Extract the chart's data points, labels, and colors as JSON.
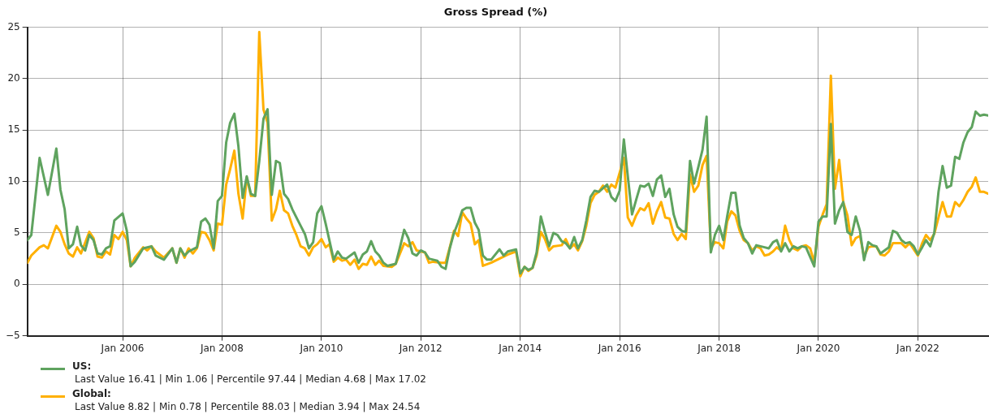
{
  "chart_data": {
    "type": "line",
    "title": "Gross Spread (%)",
    "xlim": [
      "2004-02",
      "2023-06"
    ],
    "xticks": [
      {
        "value": "2006-01",
        "label": "Jan 2006"
      },
      {
        "value": "2008-01",
        "label": "Jan 2008"
      },
      {
        "value": "2010-01",
        "label": "Jan 2010"
      },
      {
        "value": "2012-01",
        "label": "Jan 2012"
      },
      {
        "value": "2014-01",
        "label": "Jan 2014"
      },
      {
        "value": "2016-01",
        "label": "Jan 2016"
      },
      {
        "value": "2018-01",
        "label": "Jan 2018"
      },
      {
        "value": "2020-01",
        "label": "Jan 2020"
      },
      {
        "value": "2022-01",
        "label": "Jan 2022"
      }
    ],
    "ylim": [
      -5,
      25
    ],
    "yticks": [
      -5,
      0,
      5,
      10,
      15,
      20,
      25
    ],
    "grid": true,
    "legend": "bottom left",
    "marker": "none",
    "line_style": "solid",
    "annotations": [
      "Last Value 16.41  |  Min 1.06  |  Percentile 97.44  |  Median 4.68  |  Max 17.02",
      "Last Value 8.82  |  Min 0.78  |  Percentile 88.03  |  Median 3.94  |  Max 24.54"
    ],
    "series": [
      {
        "name": "US:",
        "color": "#5fa35f",
        "x": [
          "2004-02",
          "2004-03",
          "2004-05",
          "2004-07",
          "2004-09",
          "2004-10",
          "2004-11",
          "2004-12",
          "2005-01",
          "2005-02",
          "2005-03",
          "2005-04",
          "2005-05",
          "2005-06",
          "2005-07",
          "2005-08",
          "2005-09",
          "2005-10",
          "2005-11",
          "2006-01",
          "2006-02",
          "2006-03",
          "2006-04",
          "2006-06",
          "2006-08",
          "2006-09",
          "2006-11",
          "2007-01",
          "2007-02",
          "2007-03",
          "2007-04",
          "2007-05",
          "2007-07",
          "2007-08",
          "2007-09",
          "2007-10",
          "2007-11",
          "2007-12",
          "2008-01",
          "2008-02",
          "2008-03",
          "2008-04",
          "2008-05",
          "2008-06",
          "2008-07",
          "2008-08",
          "2008-09",
          "2008-10",
          "2008-11",
          "2008-12",
          "2009-01",
          "2009-02",
          "2009-03",
          "2009-04",
          "2009-05",
          "2009-06",
          "2009-07",
          "2009-08",
          "2009-09",
          "2009-10",
          "2009-11",
          "2009-12",
          "2010-01",
          "2010-02",
          "2010-04",
          "2010-05",
          "2010-06",
          "2010-07",
          "2010-09",
          "2010-10",
          "2010-11",
          "2010-12",
          "2011-01",
          "2011-02",
          "2011-03",
          "2011-04",
          "2011-05",
          "2011-07",
          "2011-08",
          "2011-09",
          "2011-10",
          "2011-11",
          "2011-12",
          "2012-01",
          "2012-02",
          "2012-03",
          "2012-05",
          "2012-06",
          "2012-07",
          "2012-08",
          "2012-09",
          "2012-10",
          "2012-11",
          "2012-12",
          "2013-01",
          "2013-02",
          "2013-03",
          "2013-04",
          "2013-05",
          "2013-06",
          "2013-08",
          "2013-09",
          "2013-10",
          "2013-12",
          "2014-01",
          "2014-02",
          "2014-03",
          "2014-04",
          "2014-05",
          "2014-06",
          "2014-07",
          "2014-08",
          "2014-09",
          "2014-10",
          "2014-11",
          "2014-12",
          "2015-01",
          "2015-02",
          "2015-03",
          "2015-04",
          "2015-05",
          "2015-06",
          "2015-07",
          "2015-08",
          "2015-10",
          "2015-11",
          "2015-12",
          "2016-01",
          "2016-02",
          "2016-03",
          "2016-04",
          "2016-05",
          "2016-06",
          "2016-07",
          "2016-08",
          "2016-09",
          "2016-10",
          "2016-11",
          "2016-12",
          "2017-01",
          "2017-02",
          "2017-03",
          "2017-04",
          "2017-05",
          "2017-06",
          "2017-07",
          "2017-08",
          "2017-09",
          "2017-10",
          "2017-11",
          "2017-12",
          "2018-01",
          "2018-02",
          "2018-03",
          "2018-04",
          "2018-05",
          "2018-06",
          "2018-07",
          "2018-08",
          "2018-09",
          "2018-10",
          "2018-11",
          "2018-12",
          "2019-01",
          "2019-02",
          "2019-03",
          "2019-04",
          "2019-05",
          "2019-06",
          "2019-07",
          "2019-08",
          "2019-09",
          "2019-10",
          "2019-12",
          "2020-01",
          "2020-02",
          "2020-03",
          "2020-04",
          "2020-05",
          "2020-06",
          "2020-07",
          "2020-08",
          "2020-09",
          "2020-10",
          "2020-11",
          "2020-12",
          "2021-01",
          "2021-02",
          "2021-03",
          "2021-04",
          "2021-05",
          "2021-06",
          "2021-07",
          "2021-08",
          "2021-09",
          "2021-10",
          "2021-11",
          "2021-12",
          "2022-01",
          "2022-02",
          "2022-03",
          "2022-04",
          "2022-05",
          "2022-06",
          "2022-07",
          "2022-08",
          "2022-09",
          "2022-10",
          "2022-11",
          "2022-12",
          "2023-01",
          "2023-02",
          "2023-03",
          "2023-04",
          "2023-05",
          "2023-06"
        ],
        "values": [
          4.3,
          4.8,
          12.3,
          8.7,
          13.2,
          9.2,
          7.3,
          3.5,
          3.9,
          5.6,
          3.8,
          3.3,
          4.8,
          4.3,
          3.0,
          2.9,
          3.5,
          3.7,
          6.2,
          6.9,
          5.2,
          1.75,
          2.2,
          3.5,
          3.7,
          2.8,
          2.4,
          3.5,
          2.1,
          3.5,
          2.8,
          3.2,
          3.6,
          6.1,
          6.4,
          5.8,
          3.5,
          8.1,
          8.6,
          13.8,
          15.7,
          16.6,
          13.4,
          8.4,
          10.5,
          8.8,
          8.6,
          12.0,
          16.1,
          17.02,
          8.7,
          12.0,
          11.8,
          8.8,
          8.3,
          7.3,
          6.5,
          5.7,
          4.9,
          3.5,
          4.1,
          6.9,
          7.6,
          5.9,
          2.4,
          3.2,
          2.6,
          2.5,
          3.1,
          2.1,
          2.9,
          3.2,
          4.2,
          3.2,
          2.8,
          2.1,
          1.8,
          2.0,
          3.6,
          5.3,
          4.5,
          3.0,
          2.8,
          3.3,
          3.1,
          2.5,
          2.3,
          1.7,
          1.5,
          3.5,
          5.0,
          6.0,
          7.2,
          7.45,
          7.45,
          6.0,
          5.3,
          2.8,
          2.4,
          2.4,
          3.4,
          2.8,
          3.2,
          3.4,
          1.06,
          1.7,
          1.4,
          1.6,
          3.1,
          6.6,
          5.1,
          3.7,
          5.0,
          4.8,
          4.2,
          4.0,
          3.5,
          4.6,
          3.5,
          4.3,
          6.2,
          8.5,
          9.1,
          9.0,
          9.7,
          8.5,
          8.1,
          9.1,
          14.1,
          10.5,
          6.8,
          8.2,
          9.6,
          9.5,
          9.8,
          8.6,
          10.2,
          10.6,
          8.5,
          9.3,
          6.8,
          5.6,
          5.2,
          5.1,
          12.0,
          9.8,
          11.4,
          13.1,
          16.3,
          3.1,
          4.8,
          5.7,
          4.3,
          6.6,
          8.9,
          8.9,
          5.7,
          4.5,
          4.0,
          3.0,
          3.8,
          3.7,
          3.6,
          3.5,
          4.1,
          4.3,
          3.2,
          4.0,
          3.2,
          3.7,
          3.5,
          3.7,
          3.6,
          1.75,
          6.1,
          6.6,
          6.6,
          15.6,
          5.9,
          7.2,
          8.0,
          5.1,
          4.8,
          6.6,
          5.2,
          2.35,
          4.1,
          3.8,
          3.7,
          3.0,
          3.3,
          3.6,
          5.2,
          5.0,
          4.3,
          4.0,
          4.1,
          3.7,
          2.9,
          3.6,
          4.3,
          3.7,
          5.0,
          9.0,
          11.5,
          9.4,
          9.6,
          12.4,
          12.2,
          13.8,
          14.8,
          15.3,
          16.8,
          16.4,
          16.5,
          16.41
        ]
      },
      {
        "name": "Global:",
        "color": "#ffb000",
        "x": [
          "2004-02",
          "2004-03",
          "2004-05",
          "2004-06",
          "2004-07",
          "2004-09",
          "2004-10",
          "2004-11",
          "2004-12",
          "2005-01",
          "2005-02",
          "2005-03",
          "2005-05",
          "2005-06",
          "2005-07",
          "2005-08",
          "2005-09",
          "2005-10",
          "2005-11",
          "2005-12",
          "2006-01",
          "2006-02",
          "2006-03",
          "2006-04",
          "2006-06",
          "2006-07",
          "2006-08",
          "2006-09",
          "2006-11",
          "2007-01",
          "2007-02",
          "2007-03",
          "2007-04",
          "2007-05",
          "2007-06",
          "2007-07",
          "2007-08",
          "2007-09",
          "2007-10",
          "2007-11",
          "2007-12",
          "2008-01",
          "2008-02",
          "2008-03",
          "2008-04",
          "2008-05",
          "2008-06",
          "2008-07",
          "2008-08",
          "2008-09",
          "2008-10",
          "2008-11",
          "2008-12",
          "2009-01",
          "2009-02",
          "2009-03",
          "2009-04",
          "2009-05",
          "2009-06",
          "2009-07",
          "2009-08",
          "2009-09",
          "2009-10",
          "2009-11",
          "2009-12",
          "2010-01",
          "2010-02",
          "2010-03",
          "2010-04",
          "2010-05",
          "2010-06",
          "2010-07",
          "2010-08",
          "2010-09",
          "2010-10",
          "2010-11",
          "2010-12",
          "2011-01",
          "2011-02",
          "2011-03",
          "2011-04",
          "2011-06",
          "2011-07",
          "2011-09",
          "2011-10",
          "2011-11",
          "2011-12",
          "2012-02",
          "2012-03",
          "2012-04",
          "2012-06",
          "2012-07",
          "2012-08",
          "2012-09",
          "2012-10",
          "2012-11",
          "2012-12",
          "2013-01",
          "2013-02",
          "2013-03",
          "2013-04",
          "2013-06",
          "2013-08",
          "2013-10",
          "2013-12",
          "2014-01",
          "2014-02",
          "2014-03",
          "2014-04",
          "2014-05",
          "2014-06",
          "2014-07",
          "2014-08",
          "2014-09",
          "2014-11",
          "2014-12",
          "2015-01",
          "2015-02",
          "2015-03",
          "2015-04",
          "2015-05",
          "2015-06",
          "2015-07",
          "2015-08",
          "2015-09",
          "2015-10",
          "2015-11",
          "2015-12",
          "2016-02",
          "2016-03",
          "2016-04",
          "2016-05",
          "2016-06",
          "2016-07",
          "2016-08",
          "2016-09",
          "2016-10",
          "2016-11",
          "2016-12",
          "2017-01",
          "2017-02",
          "2017-03",
          "2017-04",
          "2017-05",
          "2017-06",
          "2017-07",
          "2017-08",
          "2017-09",
          "2017-10",
          "2017-11",
          "2017-12",
          "2018-01",
          "2018-02",
          "2018-03",
          "2018-04",
          "2018-05",
          "2018-06",
          "2018-07",
          "2018-08",
          "2018-09",
          "2018-10",
          "2018-11",
          "2018-12",
          "2019-01",
          "2019-02",
          "2019-03",
          "2019-04",
          "2019-05",
          "2019-06",
          "2019-07",
          "2019-08",
          "2019-09",
          "2019-10",
          "2019-11",
          "2019-12",
          "2020-01",
          "2020-02",
          "2020-03",
          "2020-04",
          "2020-05",
          "2020-06",
          "2020-07",
          "2020-08",
          "2020-09",
          "2020-10",
          "2020-11",
          "2020-12",
          "2021-01",
          "2021-02",
          "2021-03",
          "2021-04",
          "2021-05",
          "2021-06",
          "2021-07",
          "2021-08",
          "2021-09",
          "2021-10",
          "2021-11",
          "2022-01",
          "2022-02",
          "2022-03",
          "2022-04",
          "2022-05",
          "2022-06",
          "2022-07",
          "2022-08",
          "2022-09",
          "2022-10",
          "2022-11",
          "2022-12",
          "2023-01",
          "2023-02",
          "2023-03",
          "2023-04",
          "2023-05",
          "2023-06"
        ],
        "values": [
          2.1,
          2.8,
          3.6,
          3.8,
          3.5,
          5.7,
          5.1,
          3.9,
          3.0,
          2.7,
          3.6,
          3.0,
          5.1,
          4.5,
          2.7,
          2.6,
          3.2,
          2.9,
          4.8,
          4.4,
          5.1,
          4.3,
          1.75,
          2.6,
          3.6,
          3.3,
          3.7,
          3.2,
          2.6,
          3.5,
          2.1,
          3.5,
          2.6,
          3.5,
          3.0,
          3.5,
          5.1,
          5.0,
          4.3,
          3.3,
          5.9,
          5.8,
          9.7,
          11.2,
          13.0,
          8.8,
          6.4,
          10.4,
          8.6,
          8.6,
          24.54,
          17.0,
          15.7,
          6.2,
          7.3,
          9.1,
          7.2,
          6.9,
          5.7,
          4.8,
          3.7,
          3.5,
          2.8,
          3.6,
          3.9,
          4.4,
          3.6,
          3.9,
          2.2,
          2.6,
          2.3,
          2.4,
          1.9,
          2.4,
          1.5,
          2.0,
          1.9,
          2.7,
          1.9,
          2.3,
          1.8,
          1.7,
          2.0,
          4.0,
          3.7,
          4.1,
          3.3,
          3.1,
          2.1,
          2.2,
          2.1,
          2.1,
          3.6,
          5.2,
          4.7,
          7.0,
          6.4,
          5.9,
          3.9,
          4.3,
          1.8,
          2.1,
          2.5,
          2.9,
          3.2,
          0.78,
          1.7,
          1.3,
          1.6,
          2.8,
          5.1,
          4.4,
          3.3,
          3.7,
          3.8,
          4.4,
          3.5,
          3.9,
          3.3,
          4.2,
          5.7,
          7.9,
          8.7,
          9.0,
          9.6,
          9.0,
          9.7,
          9.4,
          12.3,
          6.5,
          5.7,
          6.7,
          7.4,
          7.2,
          7.9,
          5.9,
          7.1,
          8.0,
          6.5,
          6.4,
          4.9,
          4.3,
          4.9,
          4.4,
          10.7,
          9.0,
          9.6,
          11.6,
          12.5,
          3.5,
          4.1,
          4.0,
          3.5,
          6.1,
          7.1,
          6.7,
          5.2,
          4.3,
          4.0,
          3.3,
          3.7,
          3.5,
          2.8,
          2.9,
          3.2,
          3.6,
          3.3,
          5.7,
          4.3,
          3.5,
          3.3,
          3.7,
          3.8,
          3.5,
          2.1,
          5.6,
          6.8,
          7.8,
          20.3,
          9.3,
          12.1,
          8.0,
          6.7,
          3.8,
          4.5,
          4.7,
          2.7,
          3.6,
          3.7,
          3.7,
          2.9,
          2.8,
          3.2,
          4.0,
          4.0,
          4.0,
          3.6,
          4.0,
          2.8,
          4.0,
          4.8,
          4.3,
          4.9,
          6.5,
          8.0,
          6.6,
          6.6,
          8.0,
          7.6,
          8.2,
          9.0,
          9.5,
          10.4,
          9.0,
          9.0,
          8.82
        ]
      }
    ]
  }
}
